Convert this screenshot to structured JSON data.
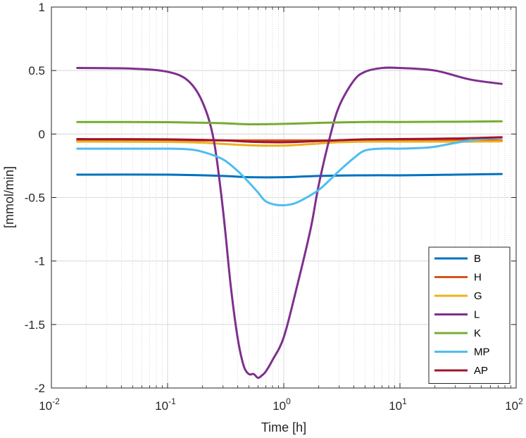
{
  "chart_data": {
    "type": "line",
    "title": "",
    "xlabel": "Time [h]",
    "ylabel": "[mmol/min]",
    "xscale": "log",
    "xlim": [
      0.01,
      100
    ],
    "ylim": [
      -2,
      1
    ],
    "xticks": [
      {
        "value": 0.01,
        "base": "10",
        "exp": "-2"
      },
      {
        "value": 0.1,
        "base": "10",
        "exp": "-1"
      },
      {
        "value": 1,
        "base": "10",
        "exp": "0"
      },
      {
        "value": 10,
        "base": "10",
        "exp": "1"
      },
      {
        "value": 100,
        "base": "10",
        "exp": "2"
      }
    ],
    "yticks": [
      {
        "value": 1,
        "label": "1"
      },
      {
        "value": 0.5,
        "label": "0.5"
      },
      {
        "value": 0,
        "label": "0"
      },
      {
        "value": -0.5,
        "label": "-0.5"
      },
      {
        "value": -1,
        "label": "-1"
      },
      {
        "value": -1.5,
        "label": "-1.5"
      },
      {
        "value": -2,
        "label": "-2"
      }
    ],
    "grid": true,
    "legend_position": "bottom-right",
    "series": [
      {
        "name": "B",
        "color": "#0072BD",
        "x": [
          0.0167,
          0.1,
          0.3,
          0.5,
          1,
          2,
          5,
          10,
          30,
          75
        ],
        "y": [
          -0.32,
          -0.32,
          -0.33,
          -0.34,
          -0.34,
          -0.33,
          -0.325,
          -0.325,
          -0.32,
          -0.315
        ]
      },
      {
        "name": "H",
        "color": "#D95319",
        "x": [
          0.0167,
          0.1,
          0.3,
          0.5,
          1,
          2,
          5,
          10,
          30,
          75
        ],
        "y": [
          -0.05,
          -0.05,
          -0.05,
          -0.05,
          -0.05,
          -0.05,
          -0.05,
          -0.05,
          -0.05,
          -0.05
        ]
      },
      {
        "name": "G",
        "color": "#EDB120",
        "x": [
          0.0167,
          0.1,
          0.2,
          0.3,
          0.5,
          0.8,
          1.2,
          2,
          3,
          5,
          10,
          30,
          75
        ],
        "y": [
          -0.06,
          -0.062,
          -0.068,
          -0.078,
          -0.088,
          -0.092,
          -0.088,
          -0.075,
          -0.065,
          -0.06,
          -0.06,
          -0.06,
          -0.058
        ]
      },
      {
        "name": "L",
        "color": "#7E2F8E",
        "x": [
          0.0167,
          0.05,
          0.1,
          0.15,
          0.2,
          0.25,
          0.3,
          0.35,
          0.4,
          0.45,
          0.5,
          0.55,
          0.6,
          0.65,
          0.7,
          0.8,
          1,
          1.3,
          1.7,
          2,
          2.5,
          3,
          4,
          5,
          7,
          10,
          20,
          40,
          75
        ],
        "y": [
          0.52,
          0.515,
          0.49,
          0.42,
          0.25,
          -0.05,
          -0.6,
          -1.2,
          -1.6,
          -1.82,
          -1.89,
          -1.89,
          -1.92,
          -1.9,
          -1.87,
          -1.78,
          -1.6,
          -1.2,
          -0.75,
          -0.4,
          -0.02,
          0.22,
          0.42,
          0.49,
          0.52,
          0.52,
          0.5,
          0.43,
          0.395
        ]
      },
      {
        "name": "K",
        "color": "#77AC30",
        "x": [
          0.0167,
          0.1,
          0.3,
          0.5,
          1,
          2,
          5,
          10,
          30,
          75
        ],
        "y": [
          0.095,
          0.093,
          0.085,
          0.077,
          0.08,
          0.088,
          0.095,
          0.095,
          0.097,
          0.1
        ]
      },
      {
        "name": "MP",
        "color": "#4DBEEE",
        "x": [
          0.0167,
          0.05,
          0.1,
          0.15,
          0.2,
          0.3,
          0.4,
          0.5,
          0.6,
          0.7,
          0.9,
          1.2,
          1.5,
          2,
          2.5,
          3,
          4,
          5,
          7,
          10,
          15,
          20,
          30,
          50,
          75
        ],
        "y": [
          -0.115,
          -0.115,
          -0.115,
          -0.12,
          -0.14,
          -0.2,
          -0.29,
          -0.38,
          -0.46,
          -0.53,
          -0.56,
          -0.55,
          -0.51,
          -0.44,
          -0.36,
          -0.29,
          -0.19,
          -0.13,
          -0.115,
          -0.115,
          -0.11,
          -0.1,
          -0.07,
          -0.04,
          -0.03
        ]
      },
      {
        "name": "AP",
        "color": "#A2142F",
        "x": [
          0.0167,
          0.1,
          0.3,
          0.5,
          1,
          2,
          5,
          10,
          30,
          75
        ],
        "y": [
          -0.04,
          -0.042,
          -0.05,
          -0.06,
          -0.065,
          -0.055,
          -0.042,
          -0.04,
          -0.035,
          -0.025
        ]
      }
    ]
  }
}
